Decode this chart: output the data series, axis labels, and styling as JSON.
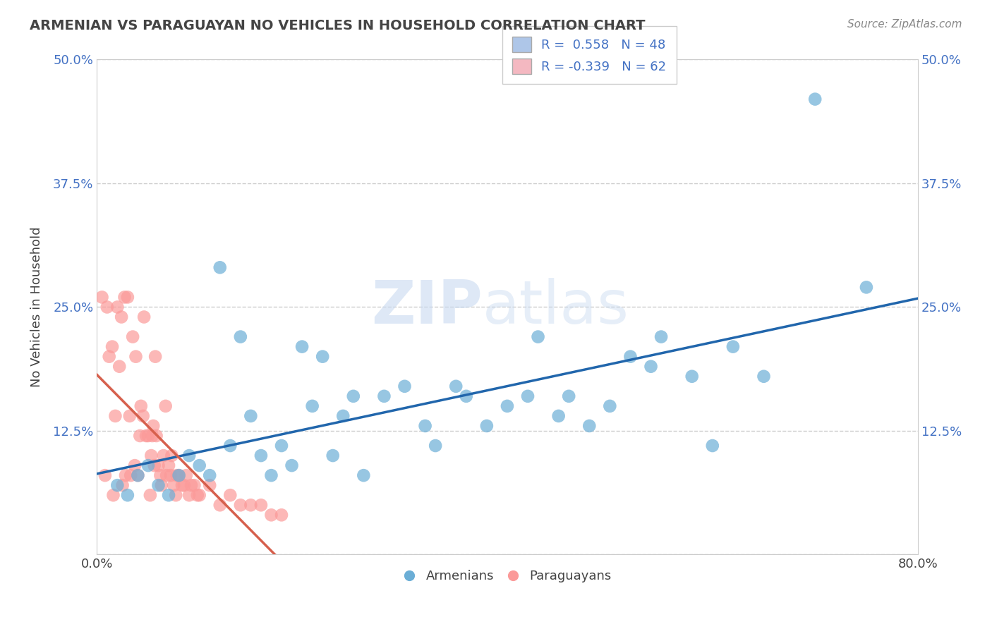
{
  "title": "ARMENIAN VS PARAGUAYAN NO VEHICLES IN HOUSEHOLD CORRELATION CHART",
  "source": "Source: ZipAtlas.com",
  "xlabel_armenians": "Armenians",
  "xlabel_paraguayans": "Paraguayans",
  "ylabel": "No Vehicles in Household",
  "xlim": [
    0.0,
    0.8
  ],
  "ylim": [
    0.0,
    0.5
  ],
  "armenian_R": 0.558,
  "armenian_N": 48,
  "paraguayan_R": -0.339,
  "paraguayan_N": 62,
  "armenian_color": "#6baed6",
  "paraguayan_color": "#fb9a99",
  "armenian_line_color": "#2166ac",
  "paraguayan_line_color": "#d6604d",
  "legend_box_armenian": "#aec6e8",
  "legend_box_paraguayan": "#f4b8c1",
  "background_color": "#ffffff",
  "grid_color": "#cccccc",
  "armenian_x": [
    0.02,
    0.03,
    0.04,
    0.05,
    0.06,
    0.07,
    0.08,
    0.09,
    0.1,
    0.11,
    0.12,
    0.13,
    0.14,
    0.15,
    0.16,
    0.17,
    0.18,
    0.19,
    0.2,
    0.21,
    0.22,
    0.23,
    0.24,
    0.25,
    0.26,
    0.28,
    0.3,
    0.32,
    0.33,
    0.35,
    0.36,
    0.38,
    0.4,
    0.42,
    0.43,
    0.45,
    0.46,
    0.48,
    0.5,
    0.52,
    0.54,
    0.55,
    0.58,
    0.6,
    0.62,
    0.65,
    0.7,
    0.75
  ],
  "armenian_y": [
    0.07,
    0.06,
    0.08,
    0.09,
    0.07,
    0.06,
    0.08,
    0.1,
    0.09,
    0.08,
    0.29,
    0.11,
    0.22,
    0.14,
    0.1,
    0.08,
    0.11,
    0.09,
    0.21,
    0.15,
    0.2,
    0.1,
    0.14,
    0.16,
    0.08,
    0.16,
    0.17,
    0.13,
    0.11,
    0.17,
    0.16,
    0.13,
    0.15,
    0.16,
    0.22,
    0.14,
    0.16,
    0.13,
    0.15,
    0.2,
    0.19,
    0.22,
    0.18,
    0.11,
    0.21,
    0.18,
    0.46,
    0.27
  ],
  "paraguayan_x": [
    0.005,
    0.008,
    0.01,
    0.012,
    0.015,
    0.016,
    0.018,
    0.02,
    0.022,
    0.024,
    0.025,
    0.027,
    0.028,
    0.03,
    0.032,
    0.033,
    0.035,
    0.037,
    0.038,
    0.04,
    0.042,
    0.043,
    0.045,
    0.046,
    0.048,
    0.05,
    0.052,
    0.053,
    0.054,
    0.055,
    0.056,
    0.057,
    0.058,
    0.06,
    0.062,
    0.063,
    0.065,
    0.067,
    0.068,
    0.07,
    0.072,
    0.073,
    0.075,
    0.077,
    0.078,
    0.08,
    0.083,
    0.085,
    0.087,
    0.09,
    0.092,
    0.095,
    0.098,
    0.1,
    0.11,
    0.12,
    0.13,
    0.14,
    0.15,
    0.16,
    0.17,
    0.18
  ],
  "paraguayan_y": [
    0.26,
    0.08,
    0.25,
    0.2,
    0.21,
    0.06,
    0.14,
    0.25,
    0.19,
    0.24,
    0.07,
    0.26,
    0.08,
    0.26,
    0.14,
    0.08,
    0.22,
    0.09,
    0.2,
    0.08,
    0.12,
    0.15,
    0.14,
    0.24,
    0.12,
    0.12,
    0.06,
    0.1,
    0.12,
    0.13,
    0.09,
    0.2,
    0.12,
    0.09,
    0.08,
    0.07,
    0.1,
    0.15,
    0.08,
    0.09,
    0.08,
    0.1,
    0.07,
    0.06,
    0.08,
    0.08,
    0.07,
    0.07,
    0.08,
    0.06,
    0.07,
    0.07,
    0.06,
    0.06,
    0.07,
    0.05,
    0.06,
    0.05,
    0.05,
    0.05,
    0.04,
    0.04
  ]
}
